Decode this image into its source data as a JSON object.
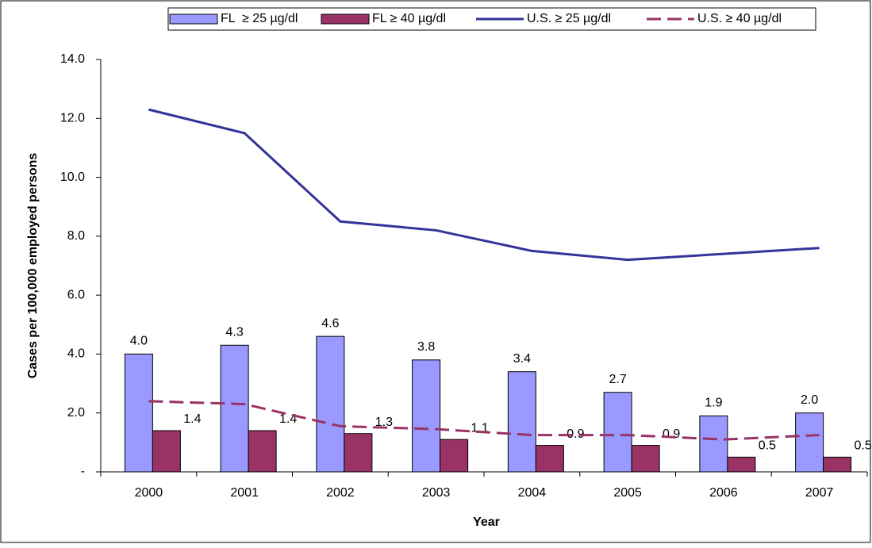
{
  "chart_data": {
    "type": "combo",
    "y_label": "Cases per 100,000 employed persons",
    "x_label": "Year",
    "categories": [
      "2000",
      "2001",
      "2002",
      "2003",
      "2004",
      "2005",
      "2006",
      "2007"
    ],
    "series": [
      {
        "name": "FL  ≥ 25 µg/dl",
        "kind": "bar",
        "color": "#9999ff",
        "values": [
          4.0,
          4.3,
          4.6,
          3.8,
          3.4,
          2.7,
          1.9,
          2.0
        ],
        "value_labels": [
          "4.0",
          "4.3",
          "4.6",
          "3.8",
          "3.4",
          "2.7",
          "1.9",
          "2.0"
        ]
      },
      {
        "name": "FL ≥ 40 µg/dl",
        "kind": "bar",
        "color": "#993366",
        "values": [
          1.4,
          1.4,
          1.3,
          1.1,
          0.9,
          0.9,
          0.5,
          0.5
        ],
        "value_labels": [
          "1.4",
          "1.4",
          "1.3",
          "1.1",
          "0.9",
          "0.9",
          "0.5",
          "0.5"
        ]
      },
      {
        "name": "U.S. ≥ 25 µg/dl",
        "kind": "line",
        "color": "#333399",
        "dashed": false,
        "values": [
          12.3,
          11.5,
          8.5,
          8.2,
          7.5,
          7.2,
          7.4,
          7.6
        ]
      },
      {
        "name": "U.S. ≥ 40 µg/dl",
        "kind": "line",
        "color": "#993366",
        "dashed": true,
        "values": [
          2.4,
          2.3,
          1.55,
          1.45,
          1.25,
          1.25,
          1.1,
          1.25
        ]
      }
    ],
    "ylim": [
      0,
      14
    ],
    "yticks": [
      {
        "value": 0,
        "label": "-"
      },
      {
        "value": 2,
        "label": "2.0"
      },
      {
        "value": 4,
        "label": "4.0"
      },
      {
        "value": 6,
        "label": "6.0"
      },
      {
        "value": 8,
        "label": "8.0"
      },
      {
        "value": 10,
        "label": "10.0"
      },
      {
        "value": 12,
        "label": "12.0"
      },
      {
        "value": 14,
        "label": "14.0"
      }
    ],
    "legend": "top"
  }
}
